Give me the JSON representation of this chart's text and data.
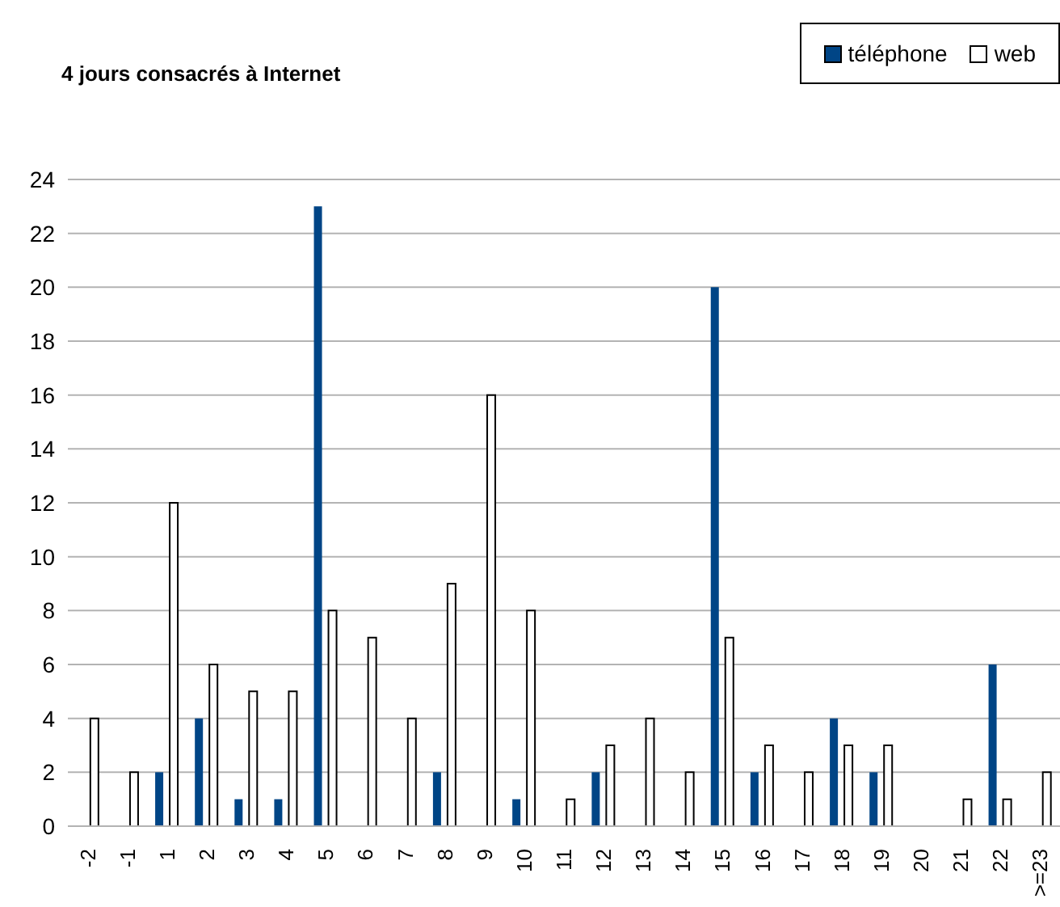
{
  "chart_data": {
    "type": "bar",
    "title": "4 jours consacrés à Internet",
    "categories": [
      "-2",
      "-1",
      "1",
      "2",
      "3",
      "4",
      "5",
      "6",
      "7",
      "8",
      "9",
      "10",
      "11",
      "12",
      "13",
      "14",
      "15",
      "16",
      "17",
      "18",
      "19",
      "20",
      "21",
      "22",
      ">=23"
    ],
    "series": [
      {
        "name": "téléphone",
        "color": "#004586",
        "values": [
          0,
          0,
          2,
          4,
          1,
          1,
          23,
          0,
          0,
          2,
          0,
          1,
          0,
          2,
          0,
          0,
          20,
          2,
          0,
          4,
          2,
          0,
          0,
          6,
          0
        ]
      },
      {
        "name": "web",
        "color": "#ffffff",
        "values": [
          4,
          2,
          12,
          6,
          5,
          5,
          8,
          7,
          4,
          9,
          16,
          8,
          1,
          3,
          4,
          2,
          7,
          3,
          2,
          3,
          3,
          0,
          1,
          1,
          2
        ]
      }
    ],
    "ylim": [
      0,
      24
    ],
    "yticks": [
      0,
      2,
      4,
      6,
      8,
      10,
      12,
      14,
      16,
      18,
      20,
      22,
      24
    ],
    "grid": "y",
    "legend": "top right"
  }
}
